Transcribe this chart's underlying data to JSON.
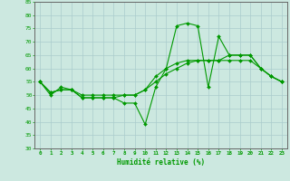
{
  "xlabel": "Humidité relative (%)",
  "background_color": "#cce8e0",
  "grid_color": "#aacccc",
  "line_color": "#009900",
  "xlim": [
    -0.5,
    23.5
  ],
  "ylim": [
    30,
    85
  ],
  "yticks": [
    30,
    35,
    40,
    45,
    50,
    55,
    60,
    65,
    70,
    75,
    80,
    85
  ],
  "xticks": [
    0,
    1,
    2,
    3,
    4,
    5,
    6,
    7,
    8,
    9,
    10,
    11,
    12,
    13,
    14,
    15,
    16,
    17,
    18,
    19,
    20,
    21,
    22,
    23
  ],
  "series": [
    [
      55,
      50,
      53,
      52,
      49,
      49,
      49,
      49,
      47,
      47,
      39,
      53,
      60,
      76,
      77,
      76,
      53,
      72,
      65,
      65,
      65,
      60,
      57,
      55
    ],
    [
      55,
      51,
      52,
      52,
      49,
      49,
      49,
      49,
      50,
      50,
      52,
      57,
      60,
      62,
      63,
      63,
      63,
      63,
      65,
      65,
      65,
      60,
      57,
      55
    ],
    [
      55,
      51,
      52,
      52,
      50,
      50,
      50,
      50,
      50,
      50,
      52,
      55,
      58,
      60,
      62,
      63,
      63,
      63,
      63,
      63,
      63,
      60,
      57,
      55
    ]
  ]
}
